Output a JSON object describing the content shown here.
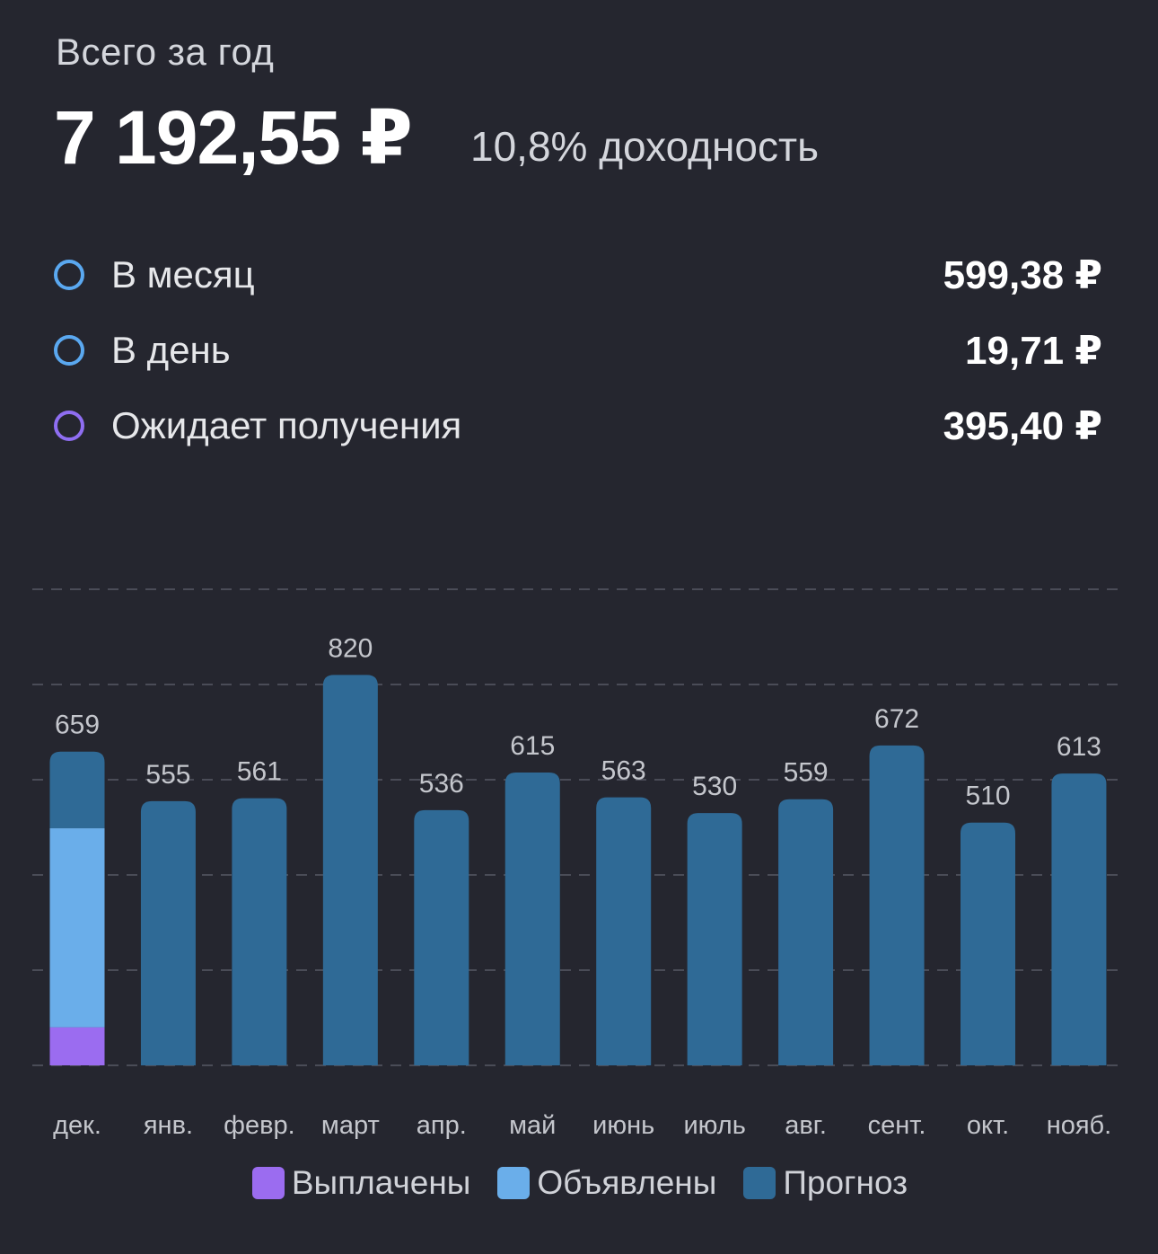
{
  "header": {
    "title": "Всего за год",
    "amount": "7 192,55 ₽",
    "yield": "10,8% доходность"
  },
  "stats": [
    {
      "label": "В месяц",
      "value": "599,38 ₽",
      "color": "#5aa8f0"
    },
    {
      "label": "В день",
      "value": "19,71 ₽",
      "color": "#5aa8f0"
    },
    {
      "label": "Ожидает получения",
      "value": "395,40 ₽",
      "color": "#8f6ef2"
    }
  ],
  "chart_data": {
    "type": "bar",
    "stacked": true,
    "categories": [
      "дек.",
      "янв.",
      "февр.",
      "март",
      "апр.",
      "май",
      "июнь",
      "июль",
      "авг.",
      "сент.",
      "окт.",
      "нояб."
    ],
    "totals": [
      659,
      555,
      561,
      820,
      536,
      615,
      563,
      530,
      559,
      672,
      510,
      613
    ],
    "series": [
      {
        "name": "Выплачены",
        "color": "#9b6cf0",
        "values": [
          80,
          0,
          0,
          0,
          0,
          0,
          0,
          0,
          0,
          0,
          0,
          0
        ]
      },
      {
        "name": "Объявлены",
        "color": "#6aaeea",
        "values": [
          418,
          0,
          0,
          0,
          0,
          0,
          0,
          0,
          0,
          0,
          0,
          0
        ]
      },
      {
        "name": "Прогноз",
        "color": "#2f6a96",
        "values": [
          161,
          555,
          561,
          820,
          536,
          615,
          563,
          530,
          559,
          672,
          510,
          613
        ]
      }
    ],
    "ylim": [
      0,
      1000
    ],
    "gridlines": [
      0,
      200,
      400,
      600,
      800,
      1000
    ],
    "grid": true,
    "legend_position": "bottom"
  }
}
